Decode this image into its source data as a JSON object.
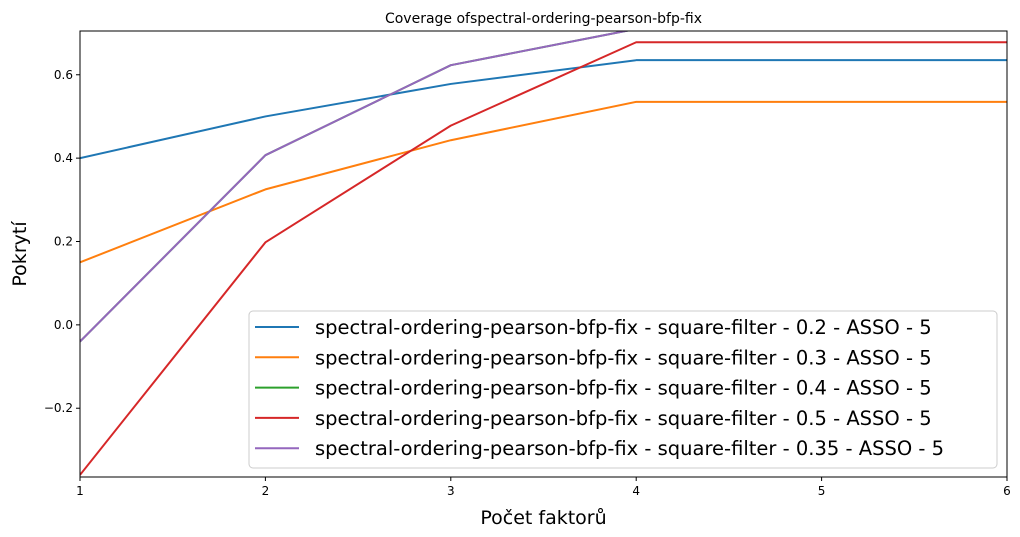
{
  "chart_data": {
    "type": "line",
    "title": "Coverage ofspectral-ordering-pearson-bfp-fix",
    "xlabel": "Počet faktorů",
    "ylabel": "Pokrytí",
    "xlim": [
      1,
      6
    ],
    "ylim": [
      -0.365,
      0.705
    ],
    "xticks": [
      1,
      2,
      3,
      4,
      5,
      6
    ],
    "xtick_labels": [
      "1",
      "2",
      "3",
      "4",
      "5",
      "6"
    ],
    "yticks": [
      -0.2,
      0.0,
      0.2,
      0.4,
      0.6
    ],
    "ytick_labels": [
      "−0.2",
      "0.0",
      "0.2",
      "0.4",
      "0.6"
    ],
    "grid": false,
    "legend_position": "lower-right",
    "x": [
      1,
      2,
      3,
      4,
      5,
      6
    ],
    "series": [
      {
        "name": "spectral-ordering-pearson-bfp-fix - square-filter - 0.2 - ASSO - 5",
        "color": "#1f77b4",
        "values": [
          0.4,
          0.5,
          0.578,
          0.635,
          0.635,
          0.635
        ]
      },
      {
        "name": "spectral-ordering-pearson-bfp-fix - square-filter - 0.3 - ASSO - 5",
        "color": "#ff7f0e",
        "values": [
          0.15,
          0.325,
          0.443,
          0.535,
          0.535,
          0.535
        ]
      },
      {
        "name": "spectral-ordering-pearson-bfp-fix - square-filter - 0.4 - ASSO - 5",
        "color": "#2ca02c",
        "values": [
          -0.04,
          0.407,
          0.623,
          0.71,
          0.71,
          0.71
        ]
      },
      {
        "name": "spectral-ordering-pearson-bfp-fix - square-filter - 0.5 - ASSO - 5",
        "color": "#d62728",
        "values": [
          -0.36,
          0.198,
          0.478,
          0.678,
          0.678,
          0.678
        ]
      },
      {
        "name": "spectral-ordering-pearson-bfp-fix - square-filter - 0.35 - ASSO - 5",
        "color": "#9467bd",
        "values": [
          -0.04,
          0.407,
          0.623,
          0.71,
          0.71,
          0.71
        ]
      }
    ]
  }
}
